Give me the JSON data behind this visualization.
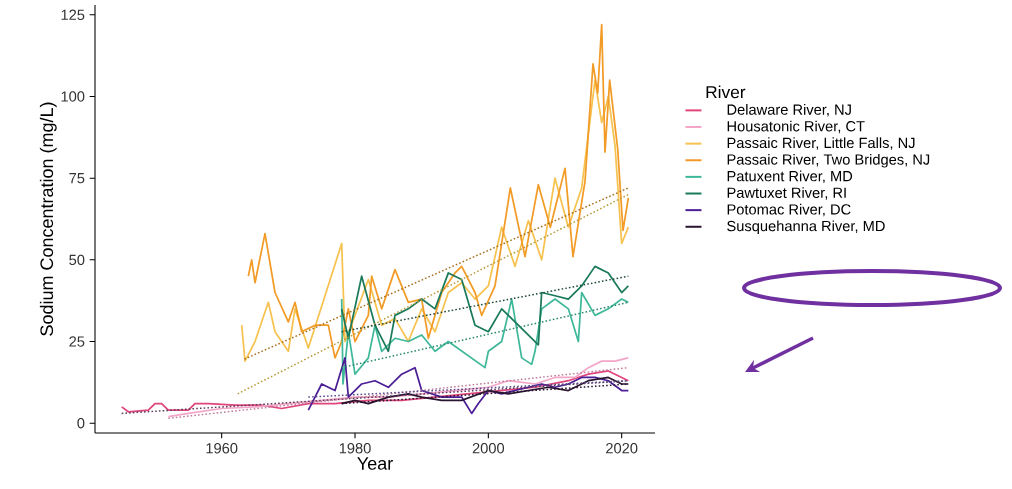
{
  "chart_data": {
    "type": "line",
    "xlabel": "Year",
    "ylabel": "Sodium Concentration (mg/L)",
    "legend_title": "River",
    "legend": "right",
    "line_style": "solid",
    "xlim": [
      1941,
      2025
    ],
    "ylim": [
      -3,
      128
    ],
    "xticks": [
      1960,
      1980,
      2000,
      2020
    ],
    "yticks": [
      0,
      25,
      50,
      75,
      100,
      125
    ],
    "series": [
      {
        "name": "Delaware River, NJ",
        "color": "#e0457b",
        "x": [
          1945,
          1946,
          1949,
          1950,
          1951,
          1952,
          1955,
          1956,
          1958,
          1962,
          1966,
          1969,
          1973,
          1977,
          1982,
          1987,
          1992,
          1997,
          2002,
          2007,
          2012,
          2015,
          2018,
          2020,
          2021
        ],
        "values": [
          5,
          3.5,
          4,
          6,
          6,
          4,
          4,
          6,
          6,
          5.5,
          5.5,
          4.5,
          6,
          6,
          7,
          7,
          8,
          9,
          10,
          11,
          13,
          15,
          16,
          14,
          13
        ]
      },
      {
        "name": "Housatonic River, CT",
        "color": "#f4a6c8",
        "x": [
          1952,
          1955,
          1960,
          1965,
          1970,
          1975,
          1980,
          1985,
          1990,
          1995,
          2000,
          2003,
          2007,
          2010,
          2013,
          2015,
          2017,
          2019,
          2021
        ],
        "values": [
          2,
          3,
          4.5,
          5,
          6,
          7,
          8,
          8,
          9,
          10,
          11,
          13,
          12,
          14,
          14,
          17,
          19,
          19,
          20
        ]
      },
      {
        "name": "Passaic River, Little Falls, NJ",
        "color": "#f6c250",
        "x": [
          1963,
          1963.5,
          1965,
          1967,
          1968,
          1970,
          1971,
          1973,
          1978,
          1978.5,
          1980,
          1982,
          1984,
          1986,
          1988,
          1990,
          1992,
          1994,
          1996,
          1998,
          2000,
          2002,
          2004,
          2006,
          2008,
          2010,
          2012,
          2014,
          2016,
          2017,
          2018,
          2019,
          2020,
          2021
        ],
        "values": [
          30,
          19,
          25,
          37,
          28,
          22,
          35,
          23,
          55,
          25,
          33,
          44,
          30,
          32,
          25,
          35,
          28,
          40,
          43,
          38,
          42,
          60,
          48,
          62,
          50,
          75,
          60,
          72,
          105,
          92,
          100,
          85,
          55,
          60
        ]
      },
      {
        "name": "Passaic River, Two Bridges, NJ",
        "color": "#f29b26",
        "x": [
          1964,
          1964.5,
          1965,
          1966.5,
          1968,
          1970,
          1971,
          1972,
          1974,
          1976,
          1977,
          1978,
          1979,
          1980,
          1982,
          1982.5,
          1984,
          1986,
          1988,
          1990,
          1991,
          1993,
          1995,
          1996,
          1998,
          1999,
          2001,
          2003.3,
          2005.5,
          2007.5,
          2009.3,
          2011.5,
          2012.7,
          2014.5,
          2015.7,
          2016.4,
          2017,
          2017.5,
          2018.2,
          2019.4,
          2020.2,
          2021
        ],
        "values": [
          45,
          50,
          43,
          58,
          40,
          31,
          37,
          28,
          30,
          30,
          20,
          25,
          35,
          25,
          33,
          45,
          35,
          47,
          37,
          38,
          26,
          40,
          46,
          48,
          40,
          33,
          42,
          72,
          51,
          73,
          60,
          78,
          51,
          74,
          110,
          101,
          122,
          83,
          105,
          84,
          59,
          69
        ]
      },
      {
        "name": "Patuxent River, MD",
        "color": "#3fb89a",
        "x": [
          1978,
          1978.2,
          1979,
          1980,
          1982,
          1983,
          1984,
          1986,
          1988,
          1990,
          1992,
          1994,
          1999.5,
          2000,
          2002,
          2003.5,
          2005,
          2006.5,
          2007,
          2008,
          2010,
          2012,
          2013.5,
          2014,
          2016,
          2018,
          2020,
          2021
        ],
        "values": [
          38,
          12,
          28,
          15,
          20,
          30,
          22,
          26,
          25,
          27,
          22,
          25,
          17,
          22,
          25,
          38,
          20,
          18,
          22,
          35,
          38,
          35,
          25,
          40,
          33,
          35,
          38,
          37
        ]
      },
      {
        "name": "Pawtuxet River, RI",
        "color": "#1b7a5a",
        "x": [
          1978,
          1979,
          1981,
          1983,
          1985,
          1986,
          1988,
          1990,
          1992,
          1994,
          1996,
          1998,
          2000,
          2002,
          2007.5,
          2008,
          2010,
          2012,
          2014,
          2016,
          2018,
          2020,
          2021
        ],
        "values": [
          35,
          26,
          45,
          30,
          22,
          33,
          35,
          38,
          35,
          46,
          44,
          30,
          28,
          35,
          24,
          40,
          39,
          38,
          42,
          48,
          46,
          40,
          42
        ]
      },
      {
        "name": "Potomac River, DC",
        "color": "#4b1e96",
        "x": [
          1973,
          1974,
          1975,
          1977,
          1978.5,
          1979,
          1981,
          1983,
          1985,
          1987,
          1989,
          1990,
          1993,
          1996,
          1997.5,
          1998.5,
          2000,
          2002,
          2004,
          2006,
          2008,
          2010,
          2012,
          2014,
          2016,
          2018,
          2020,
          2021
        ],
        "values": [
          4,
          8,
          12,
          10,
          20,
          8,
          12,
          13,
          11,
          15,
          17,
          10,
          8,
          8,
          3,
          6,
          10,
          9,
          10,
          11,
          12,
          11,
          12,
          14,
          14,
          13,
          10,
          10
        ]
      },
      {
        "name": "Susquehanna River, MD",
        "color": "#2a1530",
        "x": [
          1978,
          1980,
          1982,
          1985,
          1988,
          1990,
          1993,
          1996,
          2000,
          2003,
          2006,
          2009,
          2012,
          2015,
          2018,
          2020,
          2021
        ],
        "values": [
          6,
          7,
          6,
          8,
          9,
          8,
          7,
          7,
          10,
          9,
          10,
          11,
          10,
          13,
          14,
          12,
          12
        ]
      },
      {
        "type": "line",
        "line_style": "dotted",
        "color": "#a86e1c",
        "x": [
          1963.4,
          2021
        ],
        "values": [
          19.6,
          72
        ]
      },
      {
        "type": "line",
        "line_style": "dotted",
        "color": "#b89a3a",
        "x": [
          1962.4,
          2021
        ],
        "values": [
          9,
          70
        ]
      },
      {
        "type": "line",
        "line_style": "dotted",
        "color": "#2a8a70",
        "x": [
          1978,
          2021
        ],
        "values": [
          17,
          37
        ]
      },
      {
        "type": "line",
        "line_style": "dotted",
        "color": "#1f4a3a",
        "x": [
          1978,
          2021
        ],
        "values": [
          28,
          45
        ]
      },
      {
        "type": "line",
        "line_style": "dotted",
        "color": "#5a3a5a",
        "x": [
          1945,
          2021
        ],
        "values": [
          3,
          13
        ]
      },
      {
        "type": "line",
        "line_style": "dotted",
        "color": "#c07a9a",
        "x": [
          1952,
          2021
        ],
        "values": [
          1.5,
          17
        ]
      },
      {
        "type": "line",
        "line_style": "dotted",
        "color": "#5a4a8a",
        "x": [
          1973,
          2021
        ],
        "values": [
          8,
          13
        ]
      },
      {
        "type": "line",
        "line_style": "dotted",
        "color": "#2a1530",
        "x": [
          1978,
          2021
        ],
        "values": [
          6,
          12
        ]
      }
    ]
  }
}
